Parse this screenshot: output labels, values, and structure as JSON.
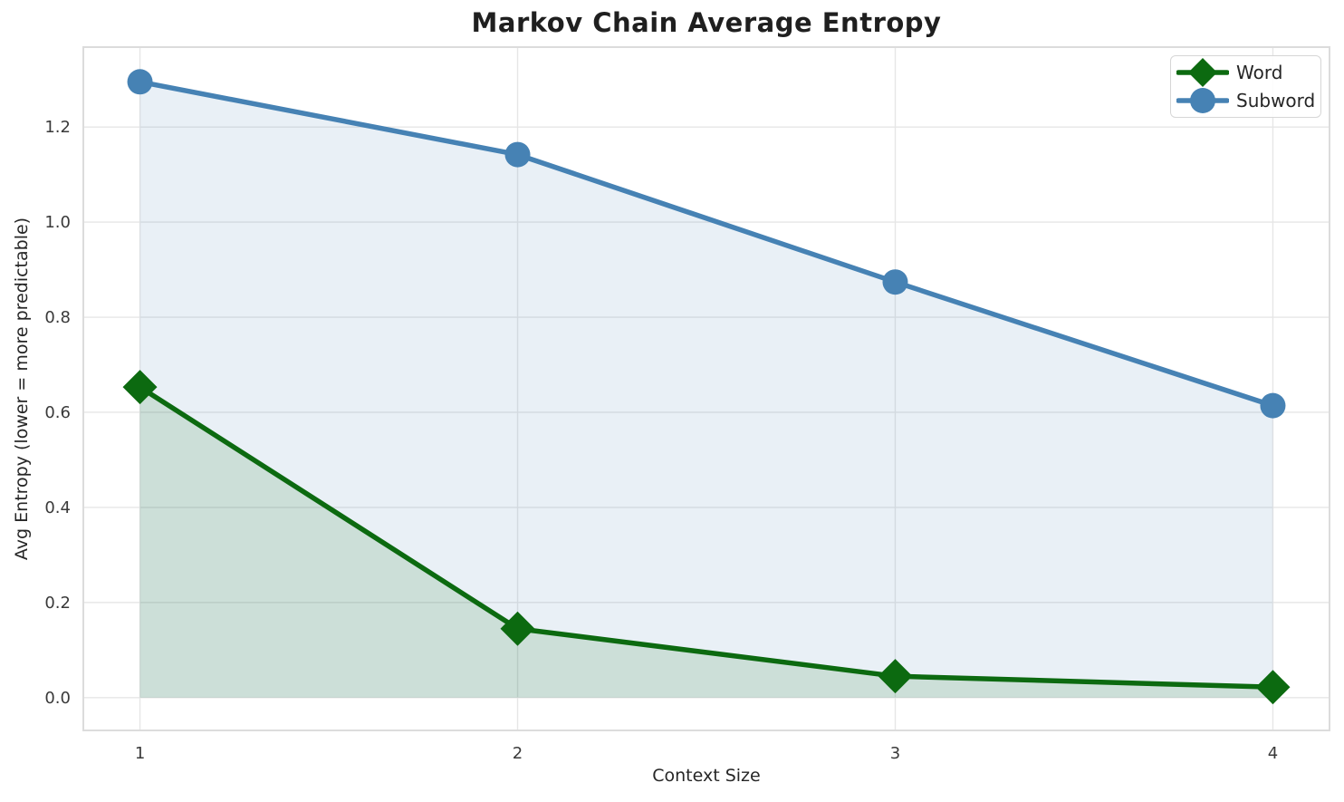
{
  "chart_data": {
    "type": "line",
    "title": "Markov Chain Average Entropy",
    "xlabel": "Context Size",
    "ylabel": "Avg Entropy (lower = more predictable)",
    "x": [
      1,
      2,
      3,
      4
    ],
    "series": [
      {
        "name": "Word",
        "color": "#0c6a10",
        "marker": "diamond",
        "values": [
          0.653,
          0.145,
          0.045,
          0.022
        ],
        "fill_to_zero": true,
        "fill_opacity": 0.13
      },
      {
        "name": "Subword",
        "color": "#4682b4",
        "marker": "circle",
        "values": [
          1.295,
          1.142,
          0.874,
          0.614
        ],
        "fill_to_zero": true,
        "fill_opacity": 0.12
      }
    ],
    "xtick_values": [
      1,
      2,
      3,
      4
    ],
    "xtick_labels": [
      "1",
      "2",
      "3",
      "4"
    ],
    "ytick_values": [
      0.0,
      0.2,
      0.4,
      0.6,
      0.8,
      1.0,
      1.2
    ],
    "ytick_labels": [
      "0.0",
      "0.2",
      "0.4",
      "0.6",
      "0.8",
      "1.0",
      "1.2"
    ],
    "xlim": [
      0.85,
      4.15
    ],
    "ylim": [
      -0.069,
      1.368
    ],
    "grid": true,
    "grid_color": "#e6e6e6",
    "spine_color": "#dcdcdc",
    "legend_position": "upper right"
  }
}
